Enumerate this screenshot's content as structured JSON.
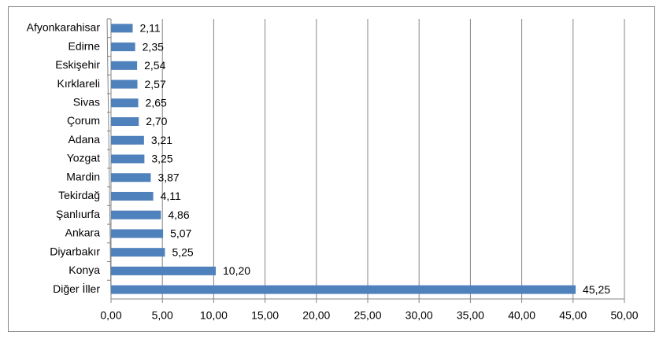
{
  "chart_data": {
    "type": "bar",
    "orientation": "horizontal",
    "categories": [
      "Afyonkarahisar",
      "Edirne",
      "Eskişehir",
      "Kırklareli",
      "Sivas",
      "Çorum",
      "Adana",
      "Yozgat",
      "Mardin",
      "Tekirdağ",
      "Şanlıurfa",
      "Ankara",
      "Diyarbakır",
      "Konya",
      "Diğer İller"
    ],
    "values": [
      2.11,
      2.35,
      2.54,
      2.57,
      2.65,
      2.7,
      3.21,
      3.25,
      3.87,
      4.11,
      4.86,
      5.07,
      5.25,
      10.2,
      45.25
    ],
    "value_labels": [
      "2,11",
      "2,35",
      "2,54",
      "2,57",
      "2,65",
      "2,70",
      "3,21",
      "3,25",
      "3,87",
      "4,11",
      "4,86",
      "5,07",
      "5,25",
      "10,20",
      "45,25"
    ],
    "color": "#4f81bd",
    "xlim": [
      0,
      50
    ],
    "xticks": [
      {
        "value": 0,
        "label": "0,00"
      },
      {
        "value": 5,
        "label": "5,00"
      },
      {
        "value": 10,
        "label": "10,00"
      },
      {
        "value": 15,
        "label": "15,00"
      },
      {
        "value": 20,
        "label": "20,00"
      },
      {
        "value": 25,
        "label": "25,00"
      },
      {
        "value": 30,
        "label": "30,00"
      },
      {
        "value": 35,
        "label": "35,00"
      },
      {
        "value": 40,
        "label": "40,00"
      },
      {
        "value": 45,
        "label": "45,00"
      },
      {
        "value": 50,
        "label": "50,00"
      }
    ],
    "grid": true
  }
}
